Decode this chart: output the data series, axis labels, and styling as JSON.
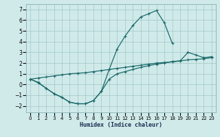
{
  "xlabel": "Humidex (Indice chaleur)",
  "background_color": "#d0eaea",
  "grid_color": "#a8cccc",
  "line_color": "#1a6868",
  "xlim": [
    -0.5,
    23.5
  ],
  "ylim": [
    -2.6,
    7.5
  ],
  "xticks": [
    0,
    1,
    2,
    3,
    4,
    5,
    6,
    7,
    8,
    9,
    10,
    11,
    12,
    13,
    14,
    15,
    16,
    17,
    18,
    19,
    20,
    21,
    22,
    23
  ],
  "yticks": [
    -2,
    -1,
    0,
    1,
    2,
    3,
    4,
    5,
    6,
    7
  ],
  "c1x": [
    0,
    1,
    2,
    3,
    4,
    5,
    6,
    7,
    8,
    9,
    10,
    11,
    12,
    13,
    14,
    15,
    16,
    17,
    18
  ],
  "c1y": [
    0.5,
    0.15,
    -0.35,
    -0.85,
    -1.2,
    -1.65,
    -1.8,
    -1.8,
    -1.5,
    -0.65,
    1.4,
    3.3,
    4.5,
    5.5,
    6.3,
    6.6,
    6.9,
    5.75,
    3.85
  ],
  "c2x": [
    0,
    1,
    2,
    3,
    4,
    5,
    6,
    7,
    8,
    9,
    10,
    11,
    12,
    13,
    14,
    15,
    16,
    17,
    18,
    19,
    20,
    21,
    22,
    23
  ],
  "c2y": [
    0.5,
    0.6,
    0.7,
    0.8,
    0.9,
    1.0,
    1.05,
    1.1,
    1.2,
    1.3,
    1.4,
    1.5,
    1.6,
    1.7,
    1.8,
    1.9,
    2.0,
    2.05,
    2.1,
    2.2,
    2.3,
    2.35,
    2.4,
    2.5
  ],
  "c3x": [
    0,
    1,
    2,
    3,
    4,
    5,
    6,
    7,
    8,
    9,
    10,
    11,
    12,
    13,
    14,
    15,
    16,
    17,
    18,
    19,
    20,
    21,
    22,
    23
  ],
  "c3y": [
    0.5,
    0.2,
    -0.35,
    -0.85,
    -1.2,
    -1.65,
    -1.8,
    -1.8,
    -1.5,
    -0.65,
    0.5,
    1.0,
    1.2,
    1.4,
    1.6,
    1.75,
    1.9,
    2.0,
    2.15,
    2.2,
    3.0,
    2.75,
    2.5,
    2.6
  ]
}
